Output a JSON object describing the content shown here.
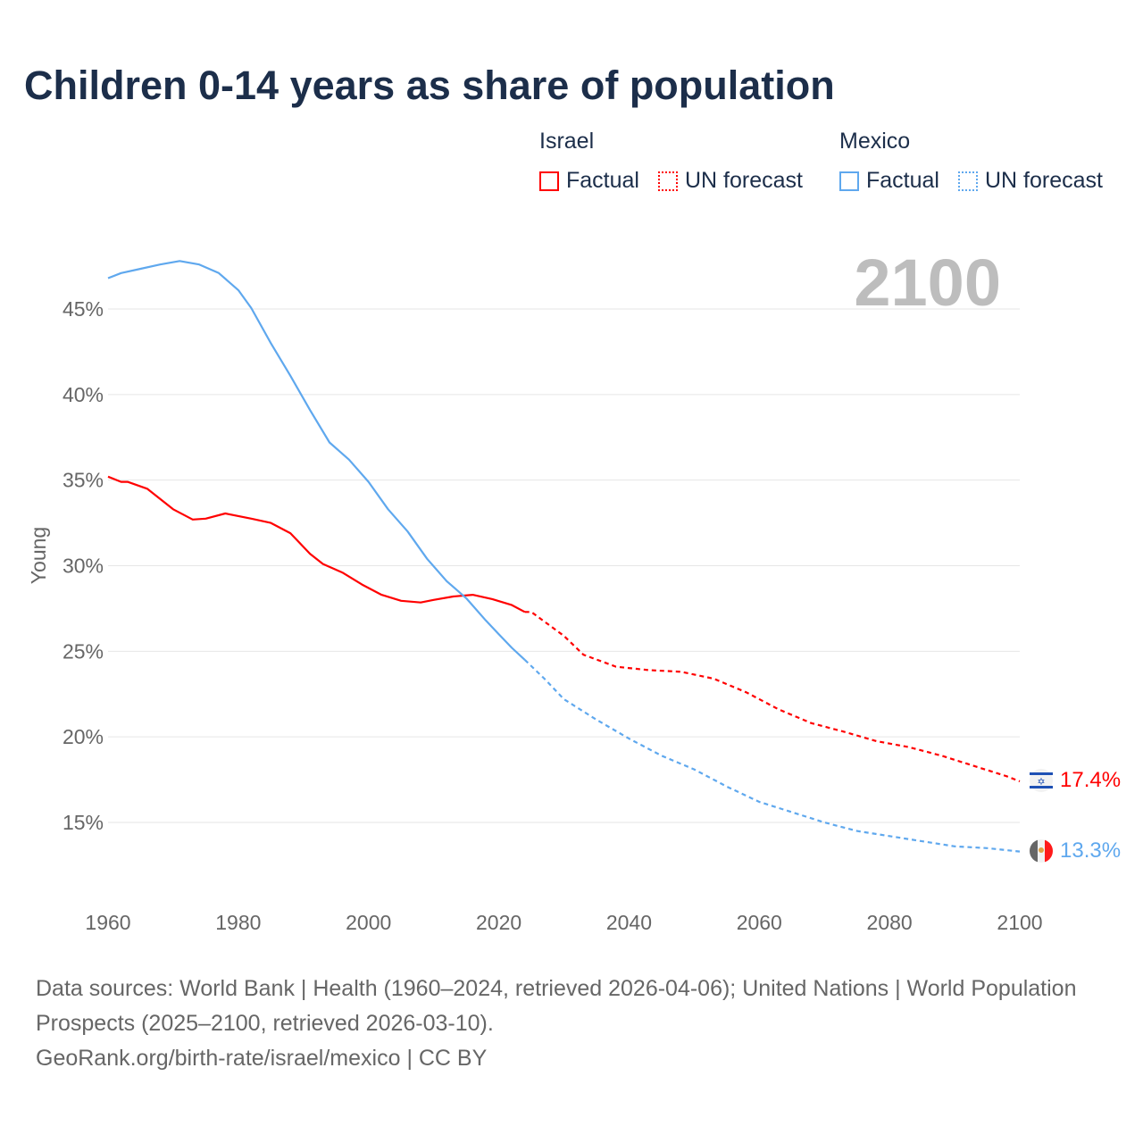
{
  "title": "Children 0-14 years as share of population",
  "legend": {
    "groups": [
      {
        "name": "Israel",
        "color": "#ff0000",
        "factual_label": "Factual",
        "forecast_label": "UN forecast"
      },
      {
        "name": "Mexico",
        "color": "#5fa8ee",
        "factual_label": "Factual",
        "forecast_label": "UN forecast"
      }
    ]
  },
  "year_overlay": "2100",
  "end_labels": {
    "israel": "17.4%",
    "mexico": "13.3%"
  },
  "footer": {
    "sources": "Data sources: World Bank | Health (1960–2024, retrieved 2026-04-06); United Nations | World Population Prospects (2025–2100, retrieved 2026-03-10).",
    "link": "GeoRank.org/birth-rate/israel/mexico | CC BY"
  },
  "chart_data": {
    "type": "line",
    "title": "Children 0-14 years as share of population",
    "xlabel": "",
    "ylabel": "Young",
    "xlim": [
      1960,
      2100
    ],
    "ylim": [
      11,
      48
    ],
    "x_ticks": [
      "1960",
      "1980",
      "2000",
      "2020",
      "2040",
      "2060",
      "2080",
      "2100"
    ],
    "y_ticks": [
      15,
      20,
      25,
      30,
      35,
      40,
      45
    ],
    "y_tick_labels": [
      "15%",
      "20%",
      "25%",
      "30%",
      "35%",
      "40%",
      "45%"
    ],
    "grid": true,
    "legend_position": "top-right",
    "series": [
      {
        "name": "Israel",
        "kind": "Factual",
        "color": "#ff0000",
        "x": [
          1960,
          1962,
          1963,
          1966,
          1970,
          1973,
          1975,
          1978,
          1982,
          1985,
          1988,
          1989,
          1991,
          1993,
          1996,
          1999,
          2002,
          2005,
          2008,
          2010,
          2013,
          2016,
          2019,
          2022,
          2024
        ],
        "y": [
          35.2,
          34.9,
          34.9,
          34.5,
          33.3,
          32.7,
          32.75,
          33.05,
          32.75,
          32.5,
          31.9,
          31.5,
          30.7,
          30.1,
          29.6,
          28.9,
          28.3,
          27.95,
          27.85,
          28.0,
          28.2,
          28.3,
          28.05,
          27.7,
          27.3
        ]
      },
      {
        "name": "Israel",
        "kind": "UN forecast",
        "color": "#ff0000",
        "x": [
          2024,
          2025,
          2030,
          2033,
          2038,
          2043,
          2048,
          2053,
          2058,
          2063,
          2068,
          2073,
          2078,
          2083,
          2088,
          2093,
          2098,
          2100
        ],
        "y": [
          27.3,
          27.3,
          25.9,
          24.8,
          24.1,
          23.9,
          23.8,
          23.4,
          22.6,
          21.6,
          20.8,
          20.3,
          19.75,
          19.4,
          18.9,
          18.3,
          17.7,
          17.4
        ]
      },
      {
        "name": "Mexico",
        "kind": "Factual",
        "color": "#5fa8ee",
        "x": [
          1960,
          1962,
          1965,
          1968,
          1971,
          1974,
          1977,
          1980,
          1982,
          1985,
          1988,
          1991,
          1994,
          1997,
          2000,
          2003,
          2006,
          2009,
          2012,
          2015,
          2018,
          2020,
          2022,
          2024
        ],
        "y": [
          46.8,
          47.1,
          47.35,
          47.6,
          47.8,
          47.6,
          47.1,
          46.1,
          45.05,
          43.0,
          41.1,
          39.1,
          37.2,
          36.2,
          34.9,
          33.3,
          32.0,
          30.4,
          29.1,
          28.1,
          26.8,
          26.0,
          25.2,
          24.5
        ]
      },
      {
        "name": "Mexico",
        "kind": "UN forecast",
        "color": "#5fa8ee",
        "x": [
          2024,
          2027,
          2030,
          2035,
          2040,
          2045,
          2050,
          2055,
          2060,
          2065,
          2070,
          2075,
          2080,
          2085,
          2090,
          2095,
          2100
        ],
        "y": [
          24.5,
          23.4,
          22.2,
          21.0,
          19.9,
          18.9,
          18.1,
          17.1,
          16.2,
          15.6,
          15.0,
          14.5,
          14.2,
          13.9,
          13.6,
          13.5,
          13.3
        ]
      }
    ]
  }
}
